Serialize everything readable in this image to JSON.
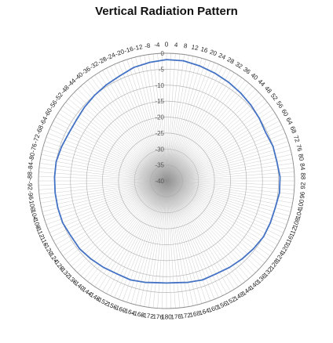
{
  "chart_data": {
    "type": "polar-line",
    "title": "Vertical Radiation Pattern",
    "angle_direction": "clockwise",
    "angle_zero": "top",
    "angle_ticks_right": [
      0,
      4,
      8,
      12,
      16,
      20,
      24,
      28,
      32,
      36,
      40,
      44,
      48,
      52,
      56,
      60,
      64,
      68,
      72,
      76,
      80,
      84,
      88,
      92,
      96,
      100,
      104,
      108,
      112,
      116,
      120,
      124,
      128,
      132,
      136,
      140,
      144,
      148,
      152,
      156,
      160,
      164,
      168,
      172,
      176
    ],
    "angle_tick_180": 180,
    "angle_ticks_left": [
      -4,
      -8,
      -12,
      -16,
      -20,
      -24,
      -28,
      -32,
      -36,
      -40,
      -44,
      -48,
      -52,
      -56,
      -60,
      -64,
      -68,
      -72,
      -76,
      -80,
      -84,
      -88,
      -92,
      -96,
      -100,
      -104,
      -108,
      -112,
      -116,
      -120,
      -124,
      -128,
      -132,
      -136,
      -140,
      -144,
      -148,
      -152,
      -156,
      -160,
      -164,
      -168,
      -172,
      -176
    ],
    "radial_ticks": [
      0,
      -5,
      -10,
      -15,
      -20,
      -25,
      -30,
      -35,
      -40
    ],
    "rlim": [
      -40,
      0
    ],
    "grid": true,
    "series": [
      {
        "color": "#4472c4",
        "angles": [
          0,
          8,
          16,
          24,
          32,
          40,
          48,
          56,
          64,
          72,
          80,
          88,
          96,
          104,
          112,
          120,
          128,
          136,
          144,
          152,
          160,
          168,
          176,
          180,
          -176,
          -168,
          -160,
          -152,
          -144,
          -136,
          -128,
          -120,
          -112,
          -104,
          -96,
          -88,
          -80,
          -72,
          -64,
          -56,
          -48,
          -40,
          -32,
          -24,
          -16,
          -8
        ],
        "values": [
          -2,
          -2,
          -2.5,
          -3,
          -3.5,
          -4,
          -4.5,
          -5,
          -5.5,
          -5,
          -5,
          -4.5,
          -4.5,
          -5,
          -5,
          -5,
          -5.5,
          -6,
          -6.5,
          -7,
          -7,
          -7.5,
          -8,
          -8,
          -8,
          -7.5,
          -7,
          -7,
          -6.5,
          -6,
          -5.5,
          -5.5,
          -5,
          -5,
          -5,
          -5,
          -5,
          -5.5,
          -6,
          -6,
          -5.5,
          -5,
          -4.5,
          -4,
          -3,
          -2.5
        ]
      }
    ]
  }
}
